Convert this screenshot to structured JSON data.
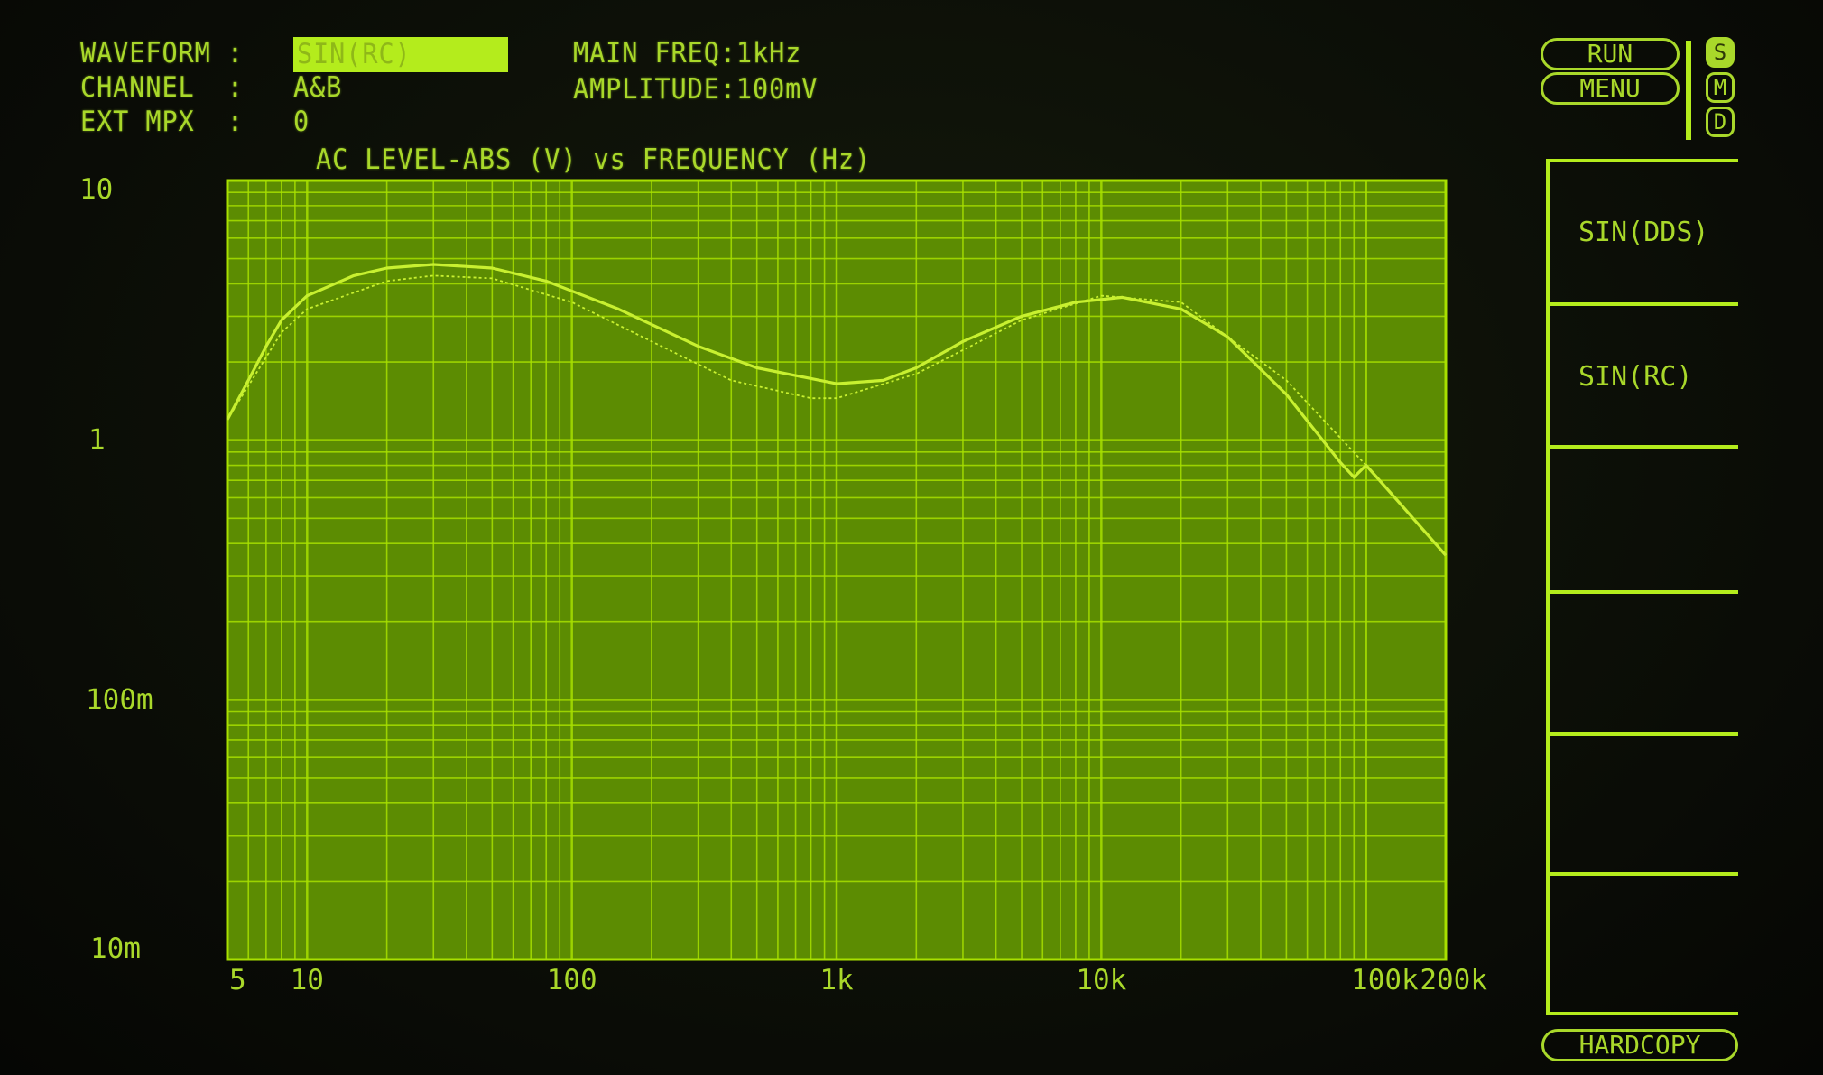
{
  "header": {
    "waveform_label": "WAVEFORM :",
    "waveform_value": "SIN(RC)",
    "channel_label": "CHANNEL  :",
    "channel_value": "A&B",
    "ext_mpx_label": "EXT MPX  :",
    "ext_mpx_value": "0",
    "main_freq": "MAIN FREQ:1kHz",
    "amplitude": "AMPLITUDE:100mV"
  },
  "controls": {
    "run": "RUN",
    "menu": "MENU",
    "modes": [
      {
        "label": "S",
        "active": true
      },
      {
        "label": "M",
        "active": false
      },
      {
        "label": "D",
        "active": false
      }
    ],
    "softkeys": [
      "SIN(DDS)",
      "SIN(RC)",
      "",
      "",
      "",
      ""
    ],
    "hardcopy": "HARDCOPY"
  },
  "colors": {
    "trace": "#c8f030",
    "grid": "#a8e000",
    "plot_bg": "#5c8c02",
    "text": "#a9d82a"
  },
  "chart_data": {
    "type": "line",
    "title": "AC LEVEL-ABS (V) vs FREQUENCY (Hz)",
    "x_scale": "log",
    "y_scale": "log",
    "xlim": [
      5,
      200000
    ],
    "ylim": [
      0.01,
      10
    ],
    "grid": true,
    "x_ticks": [
      {
        "v": 5,
        "label": "5"
      },
      {
        "v": 10,
        "label": "10"
      },
      {
        "v": 100,
        "label": "100"
      },
      {
        "v": 1000,
        "label": "1k"
      },
      {
        "v": 10000,
        "label": "10k"
      },
      {
        "v": 100000,
        "label": "100k"
      },
      {
        "v": 200000,
        "label": "200k"
      }
    ],
    "y_ticks": [
      {
        "v": 10,
        "label": "10"
      },
      {
        "v": 1,
        "label": "1"
      },
      {
        "v": 0.1,
        "label": "100m"
      },
      {
        "v": 0.01,
        "label": "10m"
      }
    ],
    "series": [
      {
        "style": "solid",
        "points": [
          [
            5,
            1.2
          ],
          [
            6,
            1.7
          ],
          [
            7,
            2.3
          ],
          [
            8,
            2.9
          ],
          [
            10,
            3.6
          ],
          [
            15,
            4.3
          ],
          [
            20,
            4.6
          ],
          [
            30,
            4.75
          ],
          [
            50,
            4.6
          ],
          [
            80,
            4.1
          ],
          [
            150,
            3.2
          ],
          [
            300,
            2.3
          ],
          [
            500,
            1.9
          ],
          [
            1000,
            1.65
          ],
          [
            1500,
            1.7
          ],
          [
            2000,
            1.9
          ],
          [
            3000,
            2.4
          ],
          [
            5000,
            3.0
          ],
          [
            8000,
            3.4
          ],
          [
            12000,
            3.55
          ],
          [
            20000,
            3.2
          ],
          [
            30000,
            2.5
          ],
          [
            50000,
            1.5
          ],
          [
            80000,
            0.82
          ],
          [
            90000,
            0.72
          ],
          [
            100000,
            0.8
          ],
          [
            120000,
            0.65
          ],
          [
            200000,
            0.36
          ]
        ]
      },
      {
        "style": "dotted",
        "points": [
          [
            5,
            1.2
          ],
          [
            8,
            2.6
          ],
          [
            10,
            3.2
          ],
          [
            20,
            4.1
          ],
          [
            30,
            4.3
          ],
          [
            50,
            4.2
          ],
          [
            100,
            3.4
          ],
          [
            200,
            2.4
          ],
          [
            400,
            1.7
          ],
          [
            800,
            1.45
          ],
          [
            1000,
            1.45
          ],
          [
            2000,
            1.8
          ],
          [
            5000,
            2.9
          ],
          [
            10000,
            3.6
          ],
          [
            20000,
            3.4
          ],
          [
            50000,
            1.7
          ],
          [
            100000,
            0.8
          ],
          [
            200000,
            0.36
          ]
        ]
      }
    ]
  }
}
